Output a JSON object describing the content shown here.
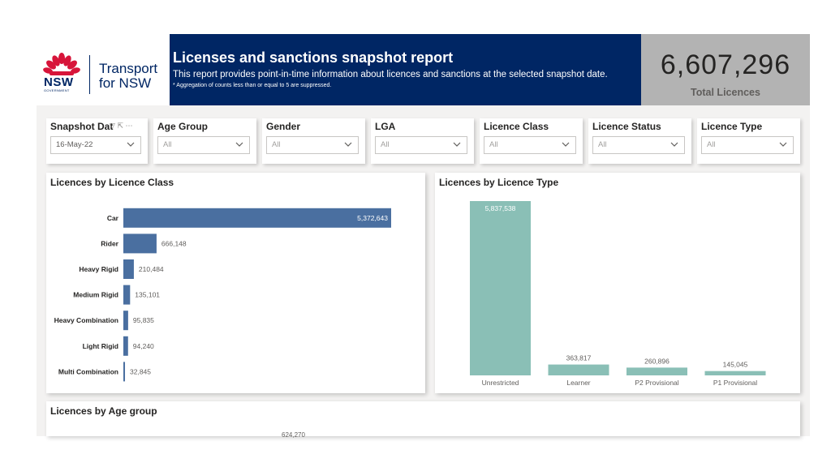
{
  "header": {
    "logo": {
      "mark": "NSW",
      "sub": "GOVERNMENT",
      "brand_line1": "Transport",
      "brand_line2": "for NSW"
    },
    "title": "Licenses and sanctions snapshot report",
    "subtitle": "This report provides point-in-time information about licences and sanctions at the selected snapshot date.",
    "note": "* Aggregation of counts less than or equal to 5 are suppressed.",
    "kpi": {
      "value": "6,607,296",
      "label": "Total Licences"
    }
  },
  "slicers": [
    {
      "label": "Snapshot Dat",
      "value": "16-May-22",
      "name": "snapshot-date"
    },
    {
      "label": "Age Group",
      "value": "All",
      "name": "age-group"
    },
    {
      "label": "Gender",
      "value": "All",
      "name": "gender"
    },
    {
      "label": "LGA",
      "value": "All",
      "name": "lga"
    },
    {
      "label": "Licence Class",
      "value": "All",
      "name": "licence-class"
    },
    {
      "label": "Licence Status",
      "value": "All",
      "name": "licence-status"
    },
    {
      "label": "Licence Type",
      "value": "All",
      "name": "licence-type"
    }
  ],
  "colors": {
    "navy": "#002664",
    "bar_blue": "#4a6fa0",
    "bar_teal": "#8abfb6",
    "kpi_bg": "#b3b3b3"
  },
  "chart_data": [
    {
      "type": "bar",
      "orientation": "horizontal",
      "title": "Licences by Licence Class",
      "categories": [
        "Car",
        "Rider",
        "Heavy Rigid",
        "Medium Rigid",
        "Heavy Combination",
        "Light Rigid",
        "Multi Combination"
      ],
      "values": [
        5372643,
        666148,
        210484,
        135101,
        95835,
        94240,
        32845
      ],
      "labels": [
        "5,372,643",
        "666,148",
        "210,484",
        "135,101",
        "95,835",
        "94,240",
        "32,845"
      ],
      "xlim": [
        0,
        5372643
      ]
    },
    {
      "type": "bar",
      "orientation": "vertical",
      "title": "Licences by Licence Type",
      "categories": [
        "Unrestricted",
        "Learner",
        "P2 Provisional",
        "P1 Provisional"
      ],
      "values": [
        5837538,
        363817,
        260896,
        145045
      ],
      "labels": [
        "5,837,538",
        "363,817",
        "260,896",
        "145,045"
      ],
      "ylim": [
        0,
        5837538
      ]
    },
    {
      "type": "bar",
      "title": "Licences by Age group",
      "visible_labels": [
        "624,270"
      ]
    }
  ]
}
